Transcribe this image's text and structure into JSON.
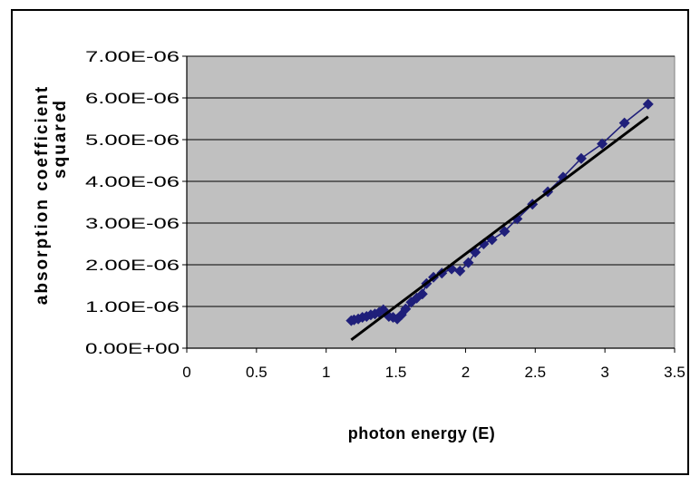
{
  "chart_data": {
    "type": "scatter",
    "title": "",
    "xlabel": "photon energy (E)",
    "ylabel_lines": [
      "absorption coefficient",
      "squared"
    ],
    "xlim": [
      0,
      3.5
    ],
    "ylim": [
      0,
      7e-06
    ],
    "x_ticks": [
      "0",
      "0.5",
      "1",
      "1.5",
      "2",
      "2.5",
      "3",
      "3.5"
    ],
    "y_ticks": [
      "0.00E+00",
      "1.00E-06",
      "2.00E-06",
      "3.00E-06",
      "4.00E-06",
      "5.00E-06",
      "6.00E-06",
      "7.00E-06"
    ],
    "grid": "horizontal",
    "legend": "none",
    "plot_background": "#C0C0C0",
    "series": [
      {
        "color": "#1F1F7A",
        "marker": "diamond",
        "connected": true,
        "x": [
          1.18,
          1.2,
          1.23,
          1.26,
          1.29,
          1.32,
          1.35,
          1.38,
          1.41,
          1.45,
          1.48,
          1.51,
          1.54,
          1.57,
          1.61,
          1.65,
          1.69,
          1.72,
          1.77,
          1.83,
          1.9,
          1.96,
          2.02,
          2.07,
          2.13,
          2.19,
          2.28,
          2.37,
          2.48,
          2.59,
          2.7,
          2.83,
          2.98,
          3.14,
          3.31
        ],
        "y": [
          6.6e-07,
          6.8e-07,
          7e-07,
          7.4e-07,
          7.6e-07,
          8e-07,
          8.2e-07,
          8.6e-07,
          9.2e-07,
          7.6e-07,
          7.4e-07,
          7e-07,
          8e-07,
          9.4e-07,
          1.1e-06,
          1.2e-06,
          1.3e-06,
          1.55e-06,
          1.7e-06,
          1.8e-06,
          1.9e-06,
          1.85e-06,
          2.05e-06,
          2.3e-06,
          2.5e-06,
          2.6e-06,
          2.8e-06,
          3.1e-06,
          3.45e-06,
          3.75e-06,
          4.1e-06,
          4.55e-06,
          4.9e-06,
          5.4e-06,
          5.85e-06
        ]
      }
    ],
    "trendline": {
      "color": "#000000",
      "x": [
        1.18,
        3.31
      ],
      "y": [
        2e-07,
        5.55e-06
      ]
    }
  }
}
